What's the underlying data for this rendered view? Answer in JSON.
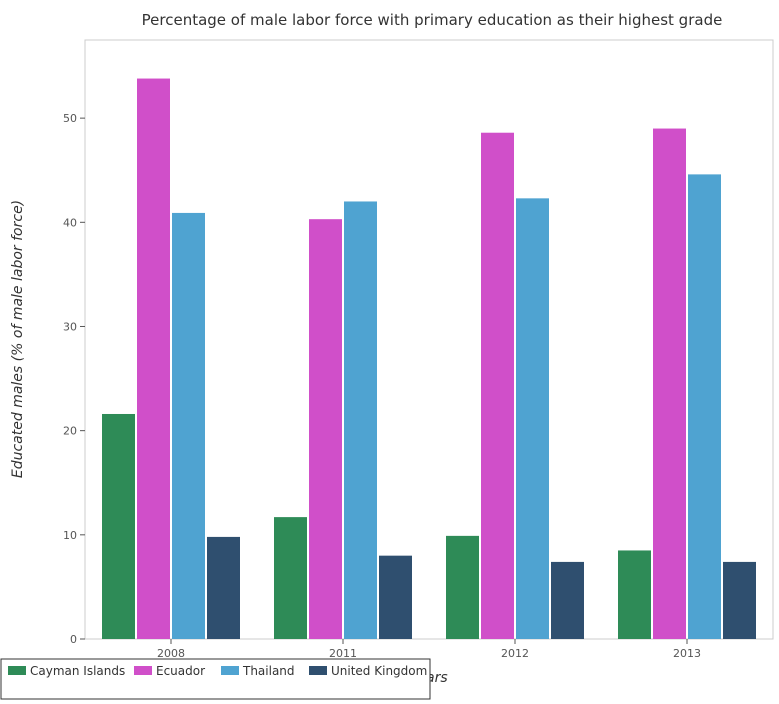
{
  "chart_data": {
    "type": "bar",
    "title": "Percentage of male labor force with primary education as their highest grade",
    "xlabel": "Years",
    "ylabel": "Educated males (% of male labor force)",
    "categories": [
      "2008",
      "2011",
      "2012",
      "2013"
    ],
    "ylim": [
      0,
      57.5
    ],
    "yticks": [
      0,
      10,
      20,
      30,
      40,
      50
    ],
    "grid": false,
    "legend_position": "bottom-left",
    "series": [
      {
        "name": "Cayman Islands",
        "color": "#2e8b57",
        "values": [
          21.6,
          11.7,
          9.9,
          8.5
        ]
      },
      {
        "name": "Ecuador",
        "color": "#d04fc9",
        "values": [
          53.8,
          40.3,
          48.6,
          49.0
        ]
      },
      {
        "name": "Thailand",
        "color": "#4fa3d1",
        "values": [
          40.9,
          42.0,
          42.3,
          44.6
        ]
      },
      {
        "name": "United Kingdom",
        "color": "#2f4f6f",
        "values": [
          9.8,
          8.0,
          7.4,
          7.4
        ]
      }
    ]
  }
}
